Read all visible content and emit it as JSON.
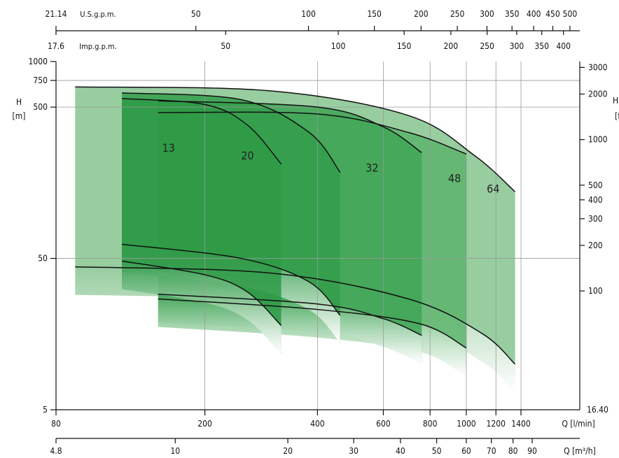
{
  "chart_data": {
    "type": "area",
    "title": "",
    "y_left": {
      "label": "H\n[m]",
      "scale": "log",
      "range": [
        5,
        1000
      ],
      "ticks": [
        5,
        50,
        500,
        750,
        1000
      ]
    },
    "y_right": {
      "label": "H\n[ft]",
      "scale": "log",
      "range": [
        16.4,
        3280
      ],
      "ticks": [
        3000,
        2000,
        1000,
        500,
        400,
        300,
        200,
        100
      ],
      "bottom_label": "16.40"
    },
    "x_lmin": {
      "label": "Q [l/min]",
      "scale": "log",
      "range": [
        80,
        1400
      ],
      "ticks": [
        80,
        200,
        400,
        600,
        800,
        1000,
        1200,
        1400
      ]
    },
    "x_m3h": {
      "label": "Q [m³/h]",
      "start_label": "4.8",
      "ticks": [
        10,
        20,
        30,
        40,
        50,
        60,
        70,
        80,
        90
      ]
    },
    "x_usgpm": {
      "unit": "U.S.g.p.m.",
      "start_label": "21.14",
      "ticks": [
        50,
        100,
        150,
        200,
        250,
        300,
        350,
        400,
        450,
        500
      ]
    },
    "x_impgpm": {
      "unit": "Imp.g.p.m.",
      "start_label": "17.6",
      "ticks": [
        50,
        100,
        150,
        200,
        250,
        300,
        350,
        400
      ]
    },
    "series": [
      {
        "name": "13",
        "q_range_lmin": [
          120,
          320
        ],
        "h_max_curve": [
          [
            120,
            570
          ],
          [
            200,
            520
          ],
          [
            260,
            380
          ],
          [
            320,
            210
          ]
        ],
        "h_min_curve": [
          [
            120,
            48
          ],
          [
            200,
            39
          ],
          [
            260,
            30
          ],
          [
            320,
            18
          ]
        ]
      },
      {
        "name": "20",
        "q_range_lmin": [
          120,
          460
        ],
        "h_max_curve": [
          [
            120,
            620
          ],
          [
            250,
            560
          ],
          [
            380,
            340
          ],
          [
            460,
            185
          ]
        ],
        "h_min_curve": [
          [
            120,
            62
          ],
          [
            250,
            50
          ],
          [
            380,
            35
          ],
          [
            460,
            21
          ]
        ]
      },
      {
        "name": "32",
        "q_range_lmin": [
          150,
          760
        ],
        "h_max_curve": [
          [
            150,
            550
          ],
          [
            400,
            500
          ],
          [
            600,
            370
          ],
          [
            760,
            250
          ]
        ],
        "h_min_curve": [
          [
            150,
            29
          ],
          [
            400,
            25
          ],
          [
            600,
            20
          ],
          [
            760,
            15.5
          ]
        ]
      },
      {
        "name": "48",
        "q_range_lmin": [
          150,
          1000
        ],
        "h_max_curve": [
          [
            150,
            460
          ],
          [
            400,
            450
          ],
          [
            700,
            340
          ],
          [
            1000,
            245
          ]
        ],
        "h_min_curve": [
          [
            150,
            27
          ],
          [
            400,
            23
          ],
          [
            750,
            18.5
          ],
          [
            1000,
            12.8
          ]
        ]
      },
      {
        "name": "64",
        "q_range_lmin": [
          90,
          1350
        ],
        "h_max_curve": [
          [
            90,
            680
          ],
          [
            300,
            640
          ],
          [
            700,
            440
          ],
          [
            1050,
            240
          ],
          [
            1350,
            138
          ]
        ],
        "h_min_curve": [
          [
            90,
            44
          ],
          [
            300,
            40
          ],
          [
            700,
            27
          ],
          [
            1100,
            16
          ],
          [
            1350,
            10
          ]
        ]
      }
    ],
    "colors": {
      "fill_dark": "#2f9e49",
      "fill_light": "#8cc494",
      "grid": "#9a9a9a",
      "curve": "#111111"
    },
    "grid": true,
    "legend": "labels inside regions"
  }
}
